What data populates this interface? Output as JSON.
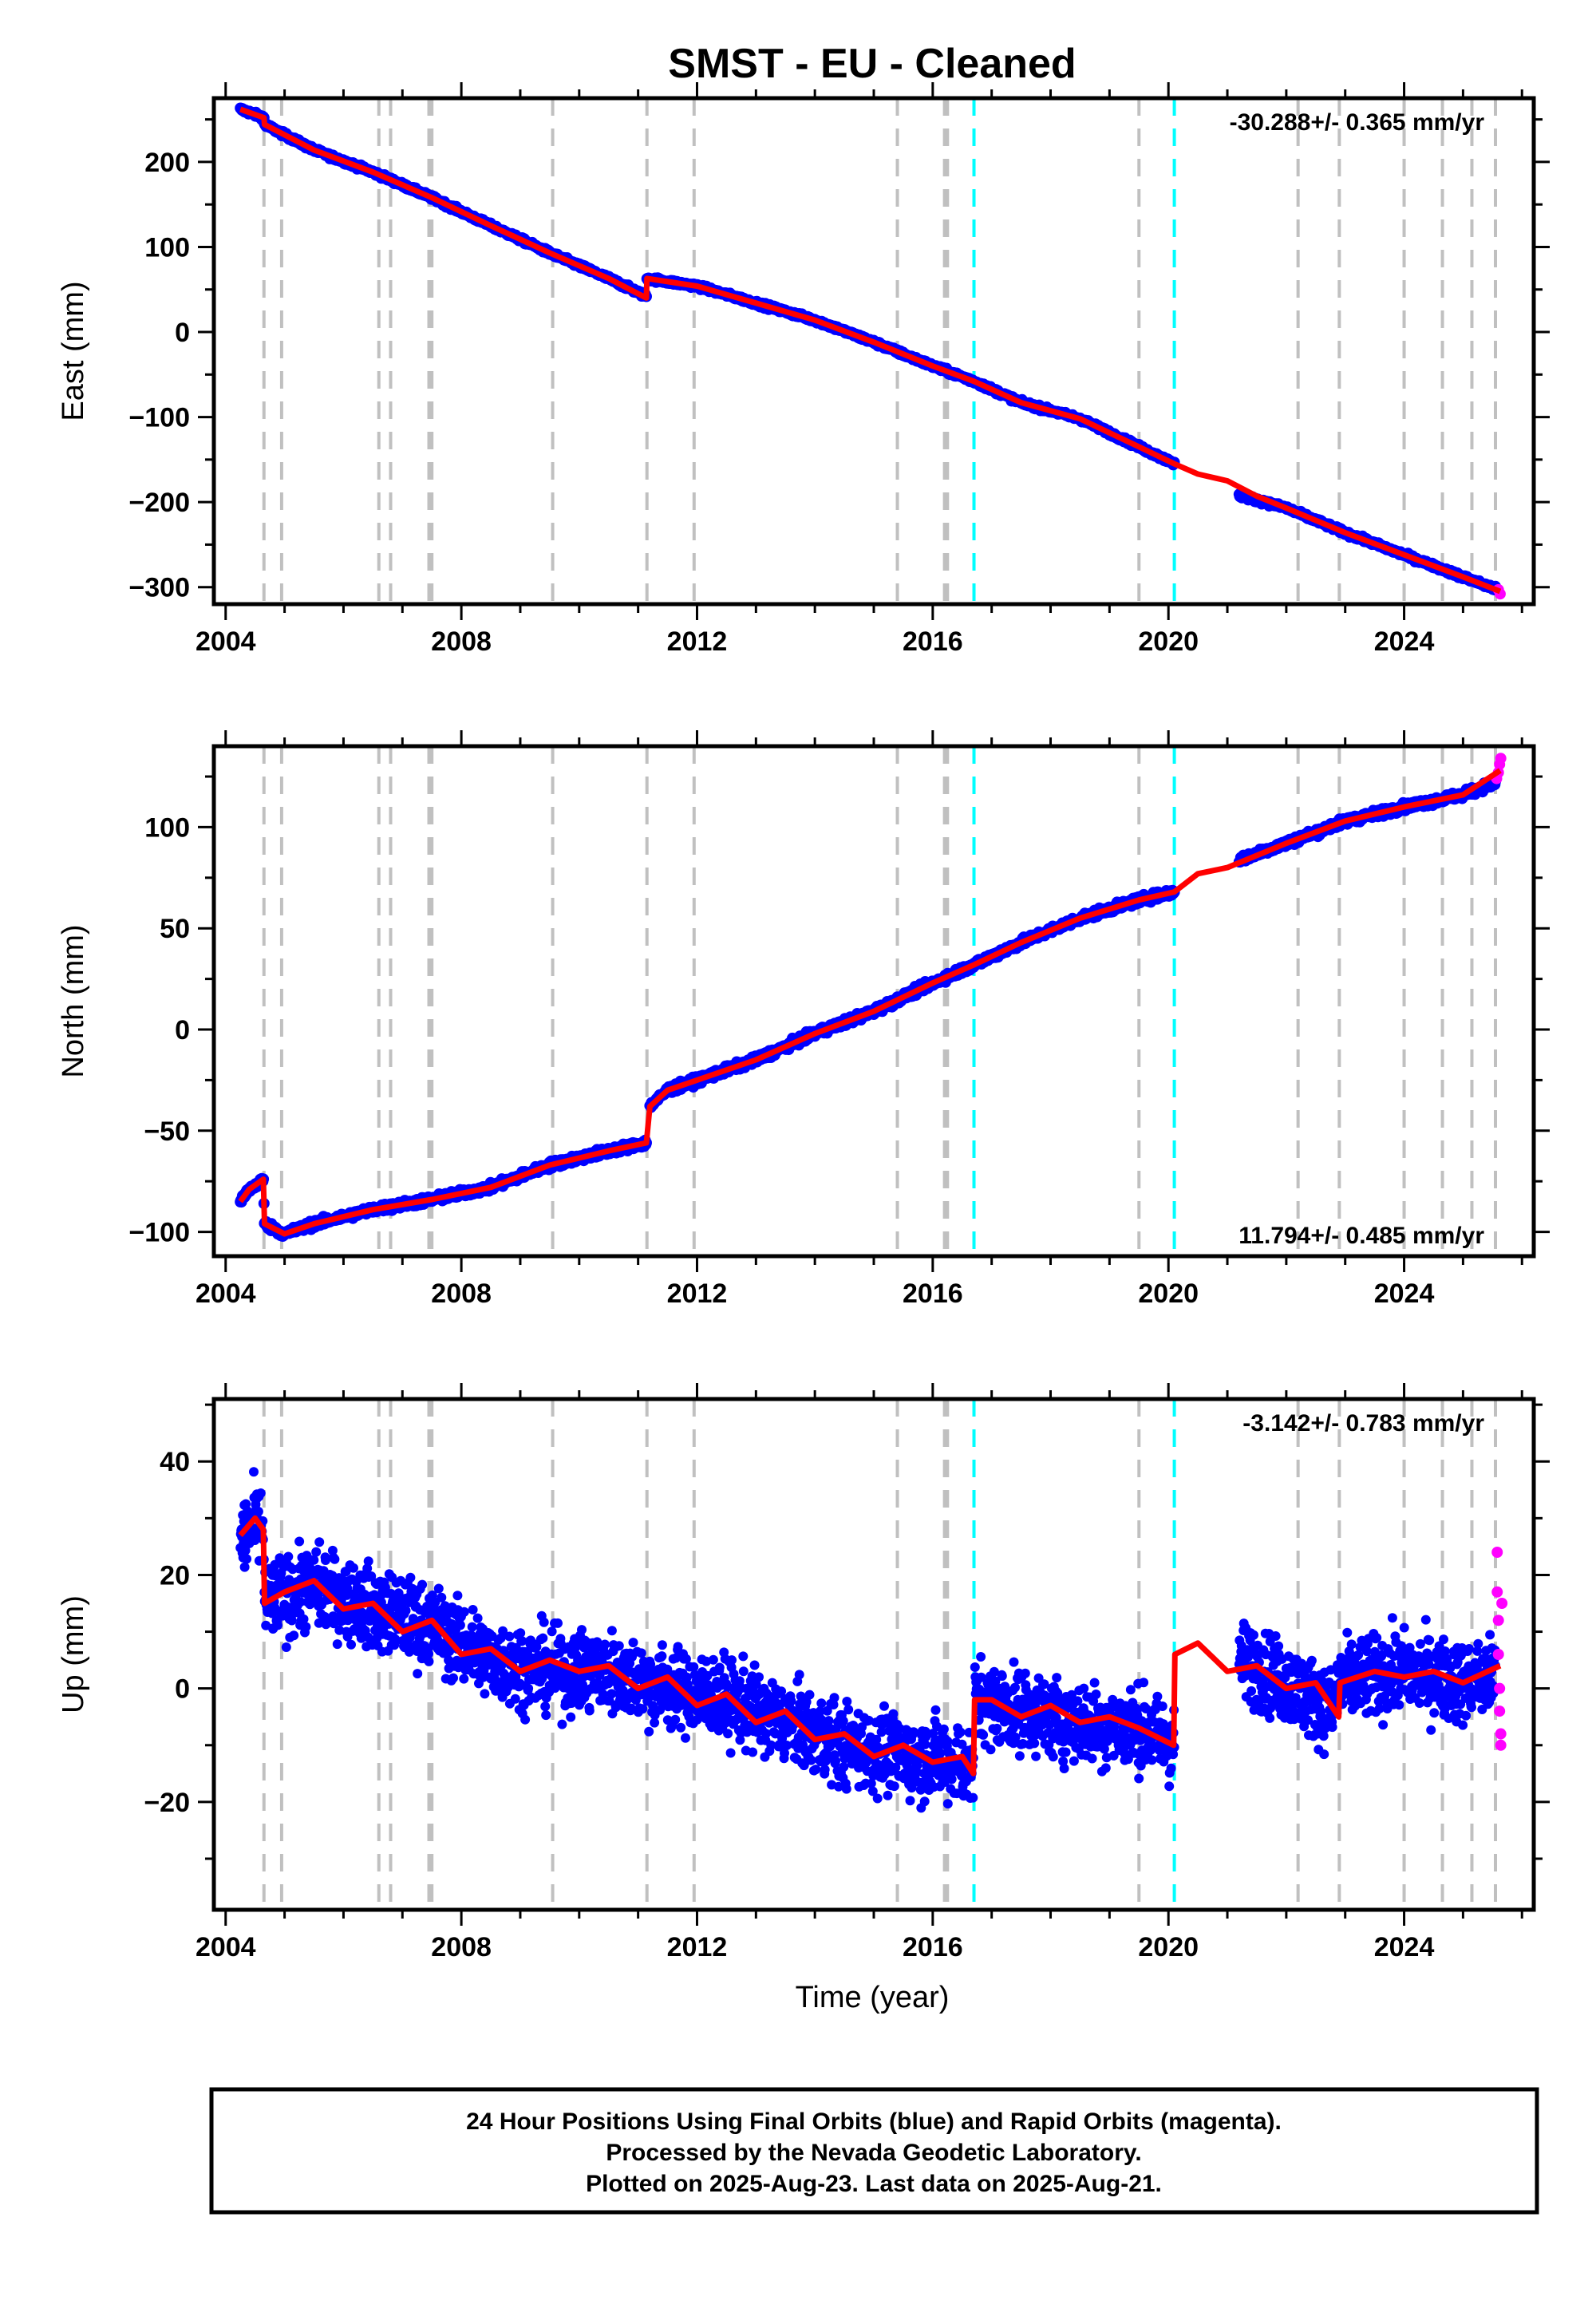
{
  "title": "SMST  - EU - Cleaned",
  "xlabel": "Time (year)",
  "x_tick_labels": [
    "2004",
    "2008",
    "2012",
    "2016",
    "2020",
    "2024"
  ],
  "colors": {
    "final_orbits": "#0000ff",
    "rapid_orbits": "#ff00ff",
    "model_fit": "#ff0000",
    "equipment_change_lines": "#c0c0c0",
    "earthquake_lines": "#00ffff"
  },
  "footer": {
    "line1": "24 Hour Positions Using Final Orbits (blue) and Rapid Orbits (magenta).",
    "line2": "Processed by the Nevada Geodetic Laboratory.",
    "line3": "Plotted on 2025-Aug-23. Last data on 2025-Aug-21."
  },
  "chart_data": [
    {
      "type": "scatter",
      "panel": "east",
      "ylabel": "East (mm)",
      "xlim": [
        2003.8,
        2026.2
      ],
      "ylim": [
        -320,
        275
      ],
      "x_ticks": [
        2004,
        2008,
        2012,
        2016,
        2020,
        2024
      ],
      "y_ticks": [
        -300,
        -200,
        -100,
        0,
        100,
        200
      ],
      "y_tick_labels": [
        "−300",
        "−200",
        "−100",
        "0",
        "100",
        "200"
      ],
      "rate_label": "-30.288+/- 0.365 mm/yr",
      "rate_position": "top-right",
      "grey_dashed_lines_x": [
        2004.65,
        2004.95,
        2006.6,
        2006.8,
        2007.45,
        2007.5,
        2009.55,
        2011.15,
        2011.95,
        2015.4,
        2016.2,
        2016.25,
        2019.5,
        2022.2,
        2022.9,
        2024.0,
        2024.65,
        2025.15,
        2025.55
      ],
      "cyan_dashed_lines_x": [
        2016.7,
        2020.1
      ],
      "final_orbit_segments": [
        {
          "x": [
            2004.25,
            2004.65,
            2004.66,
            2005.5,
            2006.5,
            2007.5,
            2008.5,
            2009.5,
            2010.5,
            2011.14
          ],
          "y": [
            262,
            252,
            244,
            214,
            188,
            158,
            125,
            93,
            63,
            42
          ]
        },
        {
          "x": [
            2011.15,
            2012.0,
            2013.0,
            2014.0,
            2015.0,
            2016.0,
            2016.7,
            2017.5,
            2018.5,
            2019.5,
            2020.1
          ],
          "y": [
            63,
            54,
            34,
            14,
            -12,
            -40,
            -58,
            -83,
            -102,
            -135,
            -155
          ]
        },
        {
          "x": [
            2021.2,
            2022.0,
            2023.0,
            2024.0,
            2025.0,
            2025.55
          ],
          "y": [
            -192,
            -207,
            -236,
            -262,
            -288,
            -302
          ]
        }
      ],
      "rapid_orbit_points": {
        "x": [
          2025.6,
          2025.63
        ],
        "y": [
          -303,
          -308
        ]
      },
      "model_fit": {
        "x": [
          2004.25,
          2004.65,
          2004.66,
          2005.5,
          2006.5,
          2007.5,
          2008.5,
          2009.5,
          2010.5,
          2011.14,
          2011.15,
          2012.0,
          2013.0,
          2014.0,
          2015.0,
          2016.0,
          2016.7,
          2017.5,
          2018.5,
          2019.5,
          2020.1,
          2020.5,
          2021.0,
          2021.5,
          2022.0,
          2023.0,
          2024.0,
          2025.0,
          2025.63
        ],
        "y": [
          262,
          252,
          244,
          214,
          188,
          158,
          125,
          93,
          63,
          40,
          63,
          54,
          34,
          14,
          -12,
          -40,
          -58,
          -83,
          -102,
          -135,
          -155,
          -167,
          -175,
          -193,
          -207,
          -236,
          -262,
          -288,
          -305
        ]
      }
    },
    {
      "type": "scatter",
      "panel": "north",
      "ylabel": "North (mm)",
      "xlim": [
        2003.8,
        2026.2
      ],
      "ylim": [
        -112,
        140
      ],
      "x_ticks": [
        2004,
        2008,
        2012,
        2016,
        2020,
        2024
      ],
      "y_ticks": [
        -100,
        -50,
        0,
        50,
        100
      ],
      "y_tick_labels": [
        "−100",
        "−50",
        "0",
        "50",
        "100"
      ],
      "rate_label": "11.794+/- 0.485 mm/yr",
      "rate_position": "bottom-right",
      "grey_dashed_lines_x": [
        2004.65,
        2004.95,
        2006.6,
        2006.8,
        2007.45,
        2007.5,
        2009.55,
        2011.15,
        2011.95,
        2015.4,
        2016.2,
        2016.25,
        2019.5,
        2022.2,
        2022.9,
        2024.0,
        2024.65,
        2025.15,
        2025.55
      ],
      "cyan_dashed_lines_x": [
        2016.7,
        2020.1
      ],
      "final_orbit_segments": [
        {
          "x": [
            2004.25,
            2004.4,
            2004.64,
            2004.66,
            2005.0,
            2005.5,
            2006.5,
            2007.5,
            2008.5,
            2009.5,
            2010.5,
            2011.14
          ],
          "y": [
            -85,
            -79,
            -74,
            -96,
            -101,
            -96,
            -89,
            -84,
            -78,
            -67,
            -60,
            -56
          ]
        },
        {
          "x": [
            2011.2,
            2011.5,
            2012.0,
            2013.0,
            2014.0,
            2015.0,
            2016.0,
            2016.7,
            2017.5,
            2018.5,
            2019.5,
            2020.1
          ],
          "y": [
            -38,
            -30,
            -25,
            -15,
            -2,
            9,
            23,
            32,
            43,
            55,
            64,
            68
          ]
        },
        {
          "x": [
            2021.2,
            2022.0,
            2023.0,
            2024.0,
            2025.0,
            2025.55
          ],
          "y": [
            84,
            92,
            103,
            110,
            116,
            122
          ]
        }
      ],
      "rapid_orbit_points": {
        "x": [
          2025.57,
          2025.6,
          2025.62,
          2025.64
        ],
        "y": [
          124,
          127,
          131,
          134
        ]
      },
      "model_fit": {
        "x": [
          2004.25,
          2004.4,
          2004.64,
          2004.66,
          2005.0,
          2005.5,
          2006.5,
          2007.5,
          2008.5,
          2009.5,
          2010.5,
          2011.14,
          2011.2,
          2011.5,
          2012.0,
          2013.0,
          2014.0,
          2015.0,
          2016.0,
          2016.7,
          2017.5,
          2018.5,
          2019.5,
          2020.1,
          2020.5,
          2021.0,
          2021.5,
          2022.0,
          2023.0,
          2024.0,
          2025.0,
          2025.63
        ],
        "y": [
          -85,
          -79,
          -74,
          -96,
          -101,
          -96,
          -89,
          -84,
          -78,
          -67,
          -60,
          -56,
          -38,
          -30,
          -25,
          -15,
          -2,
          9,
          23,
          32,
          43,
          55,
          64,
          68,
          77,
          80,
          86,
          92,
          103,
          110,
          116,
          128
        ]
      }
    },
    {
      "type": "scatter",
      "panel": "up",
      "ylabel": "Up (mm)",
      "xlim": [
        2003.8,
        2026.2
      ],
      "ylim": [
        -39,
        51
      ],
      "x_ticks": [
        2004,
        2008,
        2012,
        2016,
        2020,
        2024
      ],
      "y_ticks": [
        -20,
        0,
        20,
        40
      ],
      "y_tick_labels": [
        "−20",
        "0",
        "20",
        "40"
      ],
      "rate_label": "-3.142+/- 0.783 mm/yr",
      "rate_position": "top-right",
      "grey_dashed_lines_x": [
        2004.65,
        2004.95,
        2006.6,
        2006.8,
        2007.45,
        2007.5,
        2009.55,
        2011.15,
        2011.95,
        2015.4,
        2016.2,
        2016.25,
        2019.5,
        2022.2,
        2022.9,
        2024.0,
        2024.65,
        2025.15,
        2025.55
      ],
      "cyan_dashed_lines_x": [
        2016.7,
        2020.1
      ],
      "final_orbit_scatter_amplitude_mm": 6,
      "final_orbit_segments": [
        {
          "x": [
            2004.25,
            2004.5,
            2004.64,
            2004.66,
            2005.5,
            2006.5,
            2007.5,
            2008.5,
            2009.5,
            2010.5,
            2011.5,
            2012.5,
            2013.5,
            2014.5,
            2015.5,
            2016.5,
            2016.69
          ],
          "y": [
            26,
            29,
            28,
            15,
            18,
            14,
            11,
            5,
            3,
            3,
            0,
            -2,
            -6,
            -10,
            -12,
            -13,
            -15
          ]
        },
        {
          "x": [
            2016.71,
            2017.5,
            2018.5,
            2019.5,
            2020.1
          ],
          "y": [
            -2,
            -4,
            -6,
            -7,
            -10
          ]
        },
        {
          "x": [
            2021.2,
            2022.0,
            2022.8,
            2022.9,
            2024.0,
            2025.0,
            2025.55
          ],
          "y": [
            5,
            1,
            -4,
            1,
            3,
            1,
            2
          ]
        }
      ],
      "rapid_orbit_points": {
        "x": [
          2025.58,
          2025.58,
          2025.6,
          2025.6,
          2025.62,
          2025.62,
          2025.64,
          2025.64,
          2025.66
        ],
        "y": [
          24,
          17,
          12,
          6,
          0,
          -4,
          -8,
          -10,
          15
        ]
      },
      "model_fit": {
        "x": [
          2004.25,
          2004.5,
          2004.64,
          2004.66,
          2005.0,
          2005.5,
          2006.0,
          2006.5,
          2007.0,
          2007.5,
          2008.0,
          2008.5,
          2009.0,
          2009.5,
          2010.0,
          2010.5,
          2011.0,
          2011.5,
          2012.0,
          2012.5,
          2013.0,
          2013.5,
          2014.0,
          2014.5,
          2015.0,
          2015.5,
          2016.0,
          2016.5,
          2016.69,
          2016.71,
          2017.0,
          2017.5,
          2018.0,
          2018.5,
          2019.0,
          2019.5,
          2020.09,
          2020.11,
          2020.5,
          2021.0,
          2021.5,
          2022.0,
          2022.5,
          2022.89,
          2022.91,
          2023.5,
          2024.0,
          2024.5,
          2025.0,
          2025.63
        ],
        "y": [
          27,
          30,
          28,
          15,
          17,
          19,
          14,
          15,
          10,
          12,
          6,
          7,
          3,
          5,
          3,
          4,
          0,
          2,
          -3,
          -1,
          -6,
          -4,
          -9,
          -8,
          -12,
          -10,
          -13,
          -12,
          -15,
          -2,
          -2,
          -5,
          -3,
          -6,
          -5,
          -7,
          -10,
          6,
          8,
          3,
          4,
          0,
          1,
          -5,
          1,
          3,
          2,
          3,
          1,
          4
        ]
      }
    }
  ]
}
